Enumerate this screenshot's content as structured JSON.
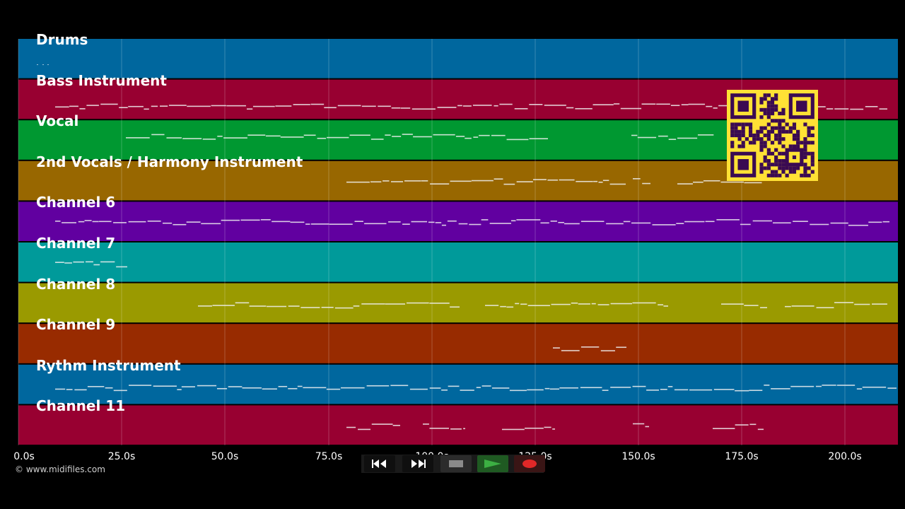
{
  "tracks": [
    {
      "name": "Drums",
      "color": "#00679e"
    },
    {
      "name": "Bass Instrument",
      "color": "#980031"
    },
    {
      "name": "Vocal",
      "color": "#009831"
    },
    {
      "name": "2nd Vocals / Harmony Instrument",
      "color": "#986700"
    },
    {
      "name": "Channel 6",
      "color": "#6100a0"
    },
    {
      "name": "Channel 7",
      "color": "#009a9a"
    },
    {
      "name": "Channel 8",
      "color": "#9a9a00"
    },
    {
      "name": "Channel 9",
      "color": "#982b00"
    },
    {
      "name": "Rythm Instrument",
      "color": "#00679e"
    },
    {
      "name": "Channel 11",
      "color": "#980031"
    }
  ],
  "timeline": {
    "ticks": [
      "0.0s",
      "25.0s",
      "50.0s",
      "75.0s",
      "100.0s",
      "125.0s",
      "150.0s",
      "175.0s",
      "200.0s"
    ]
  },
  "copyright": "© www.midifiles.com",
  "transport": {
    "buttons": [
      {
        "name": "rewind-button",
        "icon": "rewind-icon"
      },
      {
        "name": "fast-forward-button",
        "icon": "fast-forward-icon"
      },
      {
        "name": "stop-button",
        "icon": "stop-icon"
      },
      {
        "name": "play-button",
        "icon": "play-icon"
      },
      {
        "name": "record-button",
        "icon": "record-icon"
      }
    ]
  },
  "colors": {
    "background": "#000000",
    "qr_light": "#ffe135",
    "qr_dark": "#3a0a52",
    "play": "#3cb043",
    "record": "#e02828"
  }
}
